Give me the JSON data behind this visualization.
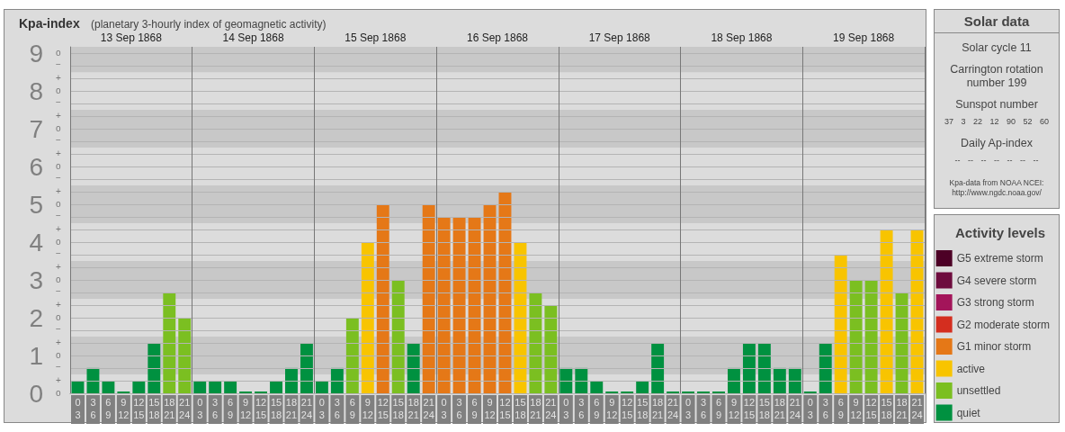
{
  "chart_data": [
    {
      "type": "bar",
      "title": "Kpa-index",
      "subtitle": "(planetary 3-hourly index of geomagnetic activity)",
      "legend_title": "Activity levels",
      "categories": [
        "0\n3",
        "3\n6",
        "6\n9",
        "9\n12",
        "12\n15",
        "15\n18",
        "18\n21",
        "21\n24",
        "0\n3",
        "3\n6",
        "6\n9",
        "9\n12",
        "12\n15",
        "15\n18",
        "18\n21",
        "21\n24",
        "0\n3",
        "3\n6",
        "6\n9",
        "9\n12",
        "12\n15",
        "15\n18",
        "18\n21",
        "21\n24",
        "0\n3",
        "3\n6",
        "6\n9",
        "9\n12",
        "12\n15",
        "15\n18",
        "18\n21",
        "21\n24",
        "0\n3",
        "3\n6",
        "6\n9",
        "9\n12",
        "12\n15",
        "15\n18",
        "18\n21",
        "21\n24",
        "0\n3",
        "3\n6",
        "6\n9",
        "9\n12",
        "12\n15",
        "15\n18",
        "18\n21",
        "21\n24",
        "0\n3",
        "3\n6",
        "6\n9",
        "9\n12",
        "12\n15",
        "15\n18",
        "18\n21",
        "21\n24"
      ],
      "stacked": true,
      "series": [
        {
          "name": "G5 extreme storm",
          "color": "#4d0026",
          "values": [
            null,
            null,
            null,
            null,
            null,
            null,
            null,
            null,
            null,
            null,
            null,
            null,
            null,
            null,
            null,
            null,
            null,
            null,
            null,
            null,
            null,
            null,
            null,
            null,
            null,
            null,
            null,
            null,
            null,
            null,
            null,
            null,
            null,
            null,
            null,
            null,
            null,
            null,
            null,
            null,
            null,
            null,
            null,
            null,
            null,
            null,
            null,
            null,
            null,
            null,
            null,
            null,
            null,
            null,
            null,
            null
          ]
        },
        {
          "name": "G4 severe storm",
          "color": "#6e0c3e",
          "values": [
            null,
            null,
            null,
            null,
            null,
            null,
            null,
            null,
            null,
            null,
            null,
            null,
            null,
            null,
            null,
            null,
            null,
            null,
            null,
            null,
            null,
            null,
            null,
            null,
            null,
            null,
            null,
            null,
            null,
            null,
            null,
            null,
            null,
            null,
            null,
            null,
            null,
            null,
            null,
            null,
            null,
            null,
            null,
            null,
            null,
            null,
            null,
            null,
            null,
            null,
            null,
            null,
            null,
            null,
            null,
            null
          ]
        },
        {
          "name": "G3 strong storm",
          "color": "#a3155a",
          "values": [
            null,
            null,
            null,
            null,
            null,
            null,
            null,
            null,
            null,
            null,
            null,
            null,
            null,
            null,
            null,
            null,
            null,
            null,
            null,
            null,
            null,
            null,
            null,
            null,
            null,
            null,
            null,
            null,
            null,
            null,
            null,
            null,
            null,
            null,
            null,
            null,
            null,
            null,
            null,
            null,
            null,
            null,
            null,
            null,
            null,
            null,
            null,
            null,
            null,
            null,
            null,
            null,
            null,
            null,
            null,
            null
          ]
        },
        {
          "name": "G2 moderate storm",
          "color": "#d42e1f",
          "values": [
            null,
            null,
            null,
            null,
            null,
            null,
            null,
            null,
            null,
            null,
            null,
            null,
            null,
            null,
            null,
            null,
            null,
            null,
            null,
            null,
            null,
            null,
            null,
            null,
            null,
            null,
            null,
            null,
            null,
            null,
            null,
            null,
            null,
            null,
            null,
            null,
            null,
            null,
            null,
            null,
            null,
            null,
            null,
            null,
            null,
            null,
            null,
            null,
            null,
            null,
            null,
            null,
            null,
            null,
            null,
            null
          ]
        },
        {
          "name": "G1 minor storm",
          "color": "#e57817",
          "values": [
            null,
            null,
            null,
            null,
            null,
            null,
            null,
            null,
            null,
            null,
            null,
            null,
            null,
            null,
            null,
            null,
            null,
            null,
            null,
            null,
            5,
            null,
            null,
            5,
            4.67,
            4.67,
            4.67,
            5,
            5.33,
            null,
            null,
            null,
            null,
            null,
            null,
            null,
            null,
            null,
            null,
            null,
            null,
            null,
            null,
            null,
            null,
            null,
            null,
            null,
            null,
            null,
            null,
            null,
            null,
            null,
            null,
            null
          ]
        },
        {
          "name": "active",
          "color": "#f8c400",
          "values": [
            null,
            null,
            null,
            null,
            null,
            null,
            null,
            null,
            null,
            null,
            null,
            null,
            null,
            null,
            null,
            null,
            null,
            null,
            null,
            4,
            null,
            null,
            null,
            null,
            null,
            null,
            null,
            null,
            null,
            4,
            null,
            null,
            null,
            null,
            null,
            null,
            null,
            null,
            null,
            null,
            null,
            null,
            null,
            null,
            null,
            null,
            null,
            null,
            null,
            null,
            3.67,
            null,
            null,
            4.33,
            null,
            4.33
          ]
        },
        {
          "name": "unsettled",
          "color": "#7bbf21",
          "values": [
            null,
            null,
            null,
            null,
            null,
            null,
            2.67,
            2,
            null,
            null,
            null,
            null,
            null,
            null,
            null,
            null,
            null,
            null,
            2,
            null,
            null,
            3,
            null,
            null,
            null,
            null,
            null,
            null,
            null,
            null,
            2.67,
            2.33,
            null,
            null,
            null,
            null,
            null,
            null,
            null,
            null,
            null,
            null,
            null,
            null,
            null,
            null,
            null,
            null,
            null,
            null,
            null,
            3,
            3,
            null,
            2.67,
            null
          ]
        },
        {
          "name": "quiet",
          "color": "#009140",
          "values": [
            0.33,
            0.67,
            0.33,
            0,
            0.33,
            1.33,
            null,
            null,
            0.33,
            0.33,
            0.33,
            0,
            0,
            0.33,
            0.67,
            1.33,
            0.33,
            0.67,
            null,
            null,
            null,
            null,
            1.33,
            null,
            null,
            null,
            null,
            null,
            null,
            null,
            null,
            null,
            0.67,
            0.67,
            0.33,
            0,
            0,
            0.33,
            1.33,
            0,
            0,
            0,
            0,
            0.67,
            1.33,
            1.33,
            0.67,
            0.67,
            0,
            1.33,
            null,
            null,
            null,
            null,
            null,
            null
          ]
        }
      ],
      "ylim": [
        0,
        9.17
      ],
      "yticks": [
        0,
        {
          "value": 0.33,
          "label": null
        },
        {
          "value": 0.67,
          "label": null
        },
        1,
        {
          "value": 1.33,
          "label": null
        },
        {
          "value": 1.67,
          "label": null
        },
        2,
        {
          "value": 2.33,
          "label": null
        },
        {
          "value": 2.67,
          "label": null
        },
        3,
        {
          "value": 3.33,
          "label": null
        },
        {
          "value": 3.67,
          "label": null
        },
        4,
        {
          "value": 4.33,
          "label": null
        },
        {
          "value": 4.67,
          "label": null
        },
        5,
        {
          "value": 5.33,
          "label": null
        },
        {
          "value": 5.67,
          "label": null
        },
        6,
        {
          "value": 6.33,
          "label": null
        },
        {
          "value": 6.67,
          "label": null
        },
        7,
        {
          "value": 7.33,
          "label": null
        },
        {
          "value": 7.67,
          "label": null
        },
        8,
        {
          "value": 8.33,
          "label": null
        },
        {
          "value": 8.67,
          "label": null
        },
        9
      ],
      "annotations": [
        "o",
        "+",
        "−",
        "o",
        "+",
        "−",
        "o",
        "+",
        "−",
        "o",
        "+",
        "−",
        "o",
        "+",
        "−",
        "o",
        "+",
        "−",
        "o",
        "+",
        "−",
        "o",
        "+",
        "−",
        "o",
        "+",
        "−",
        "o"
      ],
      "x2lim": [
        "1868-09-13T00:00",
        "1868-09-20T00:00"
      ],
      "x2ticks": [
        {
          "value": "1868-09-13T00:00",
          "label": null
        },
        {
          "value": "1868-09-13T12:00",
          "label": "13 Sep 1868"
        },
        {
          "value": "1868-09-14T00:00",
          "label": null
        },
        {
          "value": "1868-09-14T12:00",
          "label": "14 Sep 1868"
        },
        {
          "value": "1868-09-15T00:00",
          "label": null
        },
        {
          "value": "1868-09-15T12:00",
          "label": "15 Sep 1868"
        },
        {
          "value": "1868-09-16T00:00",
          "label": null
        },
        {
          "value": "1868-09-16T12:00",
          "label": "16 Sep 1868"
        },
        {
          "value": "1868-09-17T00:00",
          "label": null
        },
        {
          "value": "1868-09-17T12:00",
          "label": "17 Sep 1868"
        },
        {
          "value": "1868-09-18T00:00",
          "label": null
        },
        {
          "value": "1868-09-18T12:00",
          "label": "18 Sep 1868"
        },
        {
          "value": "1868-09-19T00:00",
          "label": null
        },
        {
          "value": "1868-09-19T12:00",
          "label": "19 Sep 1868"
        },
        {
          "value": "1868-09-20T00:00",
          "label": null
        }
      ],
      "bands": [
        {
          "axis": "y",
          "from": 0.5,
          "to": 1.5,
          "color": "#c8c8c8"
        },
        {
          "axis": "y",
          "from": 2.5,
          "to": 3.5,
          "color": "#c8c8c8"
        },
        {
          "axis": "y",
          "from": 4.5,
          "to": 5.5,
          "color": "#c8c8c8"
        },
        {
          "axis": "y",
          "from": 6.5,
          "to": 7.5,
          "color": "#c8c8c8"
        },
        {
          "axis": "y",
          "from": 8.5,
          "to": 9.17,
          "color": "#c8c8c8"
        }
      ],
      "grid": true,
      "legend": "right"
    },
    {
      "type": "other",
      "title": "Solar data",
      "annotations": [
        "Solar cycle 11",
        "Carrington rotation number 199",
        "Sunspot number",
        "37 3 22 12 90 52 60",
        "Daily Ap-index",
        "-- -- -- -- -- -- --",
        "Kpa-data from NOAA NCEI: http://www.ngdc.noaa.gov/"
      ]
    }
  ]
}
